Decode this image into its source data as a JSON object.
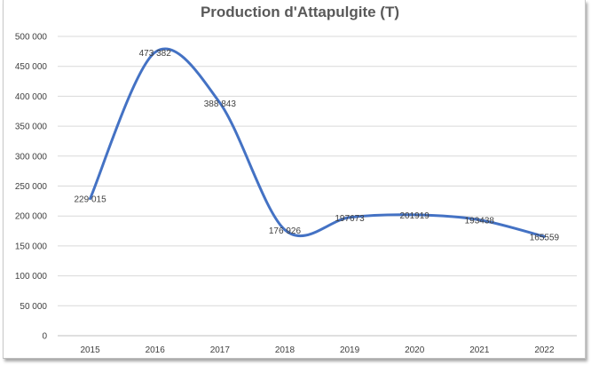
{
  "chart_data": {
    "type": "line",
    "title": "Production d'Attapulgite (T)",
    "categories": [
      "2015",
      "2016",
      "2017",
      "2018",
      "2019",
      "2020",
      "2021",
      "2022"
    ],
    "series": [
      {
        "values": [
          229015,
          473382,
          388843,
          176926,
          197673,
          201919,
          193438,
          165559
        ],
        "data_labels": [
          "229 015",
          "473 382",
          "388 843",
          "176 926",
          "197673",
          "201919",
          "193438",
          "165559"
        ],
        "color": "#4472c4"
      }
    ],
    "ylim": [
      0,
      500000
    ],
    "y_ticks": [
      0,
      50000,
      100000,
      150000,
      200000,
      250000,
      300000,
      350000,
      400000,
      450000,
      500000
    ],
    "y_tick_labels": [
      "0",
      "50 000",
      "100 000",
      "150 000",
      "200 000",
      "250 000",
      "300 000",
      "350 000",
      "400 000",
      "450 000",
      "500 000"
    ],
    "xlabel": "",
    "ylabel": "",
    "grid": true,
    "legend": "none"
  }
}
